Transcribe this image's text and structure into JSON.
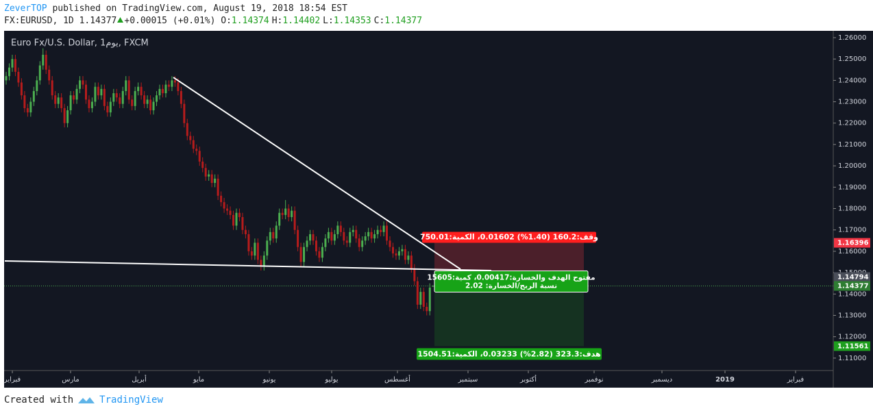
{
  "header": {
    "author": "ZeverTOP",
    "published": "published on TradingView.com, August 19, 2018 18:54 EST",
    "symbol": "FX:EURUSD, 1D 1.14377",
    "change": "+0.00015 (+0.01%)",
    "ohlc": [
      {
        "key": "O:",
        "value": "1.14374"
      },
      {
        "key": "H:",
        "value": "1.14402"
      },
      {
        "key": "L:",
        "value": "1.14353"
      },
      {
        "key": "C:",
        "value": "1.14377"
      }
    ]
  },
  "chart_data": {
    "type": "candlestick",
    "title": "Euro Fx/U.S. Dollar, 1يوم, FXCM",
    "up_color": "#4caf50",
    "down_color": "#b71c1c",
    "ylim": [
      1.1045,
      1.2632
    ],
    "yticks": [
      {
        "value": 1.11,
        "label": "1.11000"
      },
      {
        "value": 1.12,
        "label": "1.12000"
      },
      {
        "value": 1.13,
        "label": "1.13000"
      },
      {
        "value": 1.14,
        "label": "1.14000"
      },
      {
        "value": 1.15,
        "label": "1.15000"
      },
      {
        "value": 1.16,
        "label": "1.16000"
      },
      {
        "value": 1.17,
        "label": "1.17000"
      },
      {
        "value": 1.18,
        "label": "1.18000"
      },
      {
        "value": 1.19,
        "label": "1.19000"
      },
      {
        "value": 1.2,
        "label": "1.20000"
      },
      {
        "value": 1.21,
        "label": "1.21000"
      },
      {
        "value": 1.22,
        "label": "1.22000"
      },
      {
        "value": 1.23,
        "label": "1.23000"
      },
      {
        "value": 1.24,
        "label": "1.24000"
      },
      {
        "value": 1.25,
        "label": "1.25000"
      },
      {
        "value": 1.26,
        "label": "1.26000"
      }
    ],
    "x_labels": [
      "فبراير",
      "مارس",
      "أبريل",
      "مايو",
      "يونيو",
      "يوليو",
      "أغسطس",
      "سبتمبر",
      "أكتوبر",
      "نوفمبر",
      "ديسمبر",
      "2019",
      "فبراير"
    ],
    "ohlc": [
      [
        1.24,
        1.244,
        1.238,
        1.242
      ],
      [
        1.242,
        1.248,
        1.24,
        1.246
      ],
      [
        1.246,
        1.252,
        1.244,
        1.25
      ],
      [
        1.25,
        1.252,
        1.242,
        1.244
      ],
      [
        1.244,
        1.246,
        1.237,
        1.239
      ],
      [
        1.239,
        1.241,
        1.231,
        1.233
      ],
      [
        1.233,
        1.235,
        1.225,
        1.227
      ],
      [
        1.227,
        1.229,
        1.223,
        1.225
      ],
      [
        1.225,
        1.232,
        1.223,
        1.23
      ],
      [
        1.23,
        1.237,
        1.228,
        1.235
      ],
      [
        1.235,
        1.242,
        1.233,
        1.24
      ],
      [
        1.24,
        1.249,
        1.238,
        1.247
      ],
      [
        1.247,
        1.255,
        1.245,
        1.252
      ],
      [
        1.252,
        1.254,
        1.243,
        1.245
      ],
      [
        1.245,
        1.247,
        1.238,
        1.24
      ],
      [
        1.24,
        1.242,
        1.231,
        1.233
      ],
      [
        1.233,
        1.235,
        1.227,
        1.229
      ],
      [
        1.229,
        1.234,
        1.227,
        1.232
      ],
      [
        1.232,
        1.234,
        1.225,
        1.227
      ],
      [
        1.227,
        1.229,
        1.218,
        1.22
      ],
      [
        1.22,
        1.228,
        1.218,
        1.226
      ],
      [
        1.226,
        1.235,
        1.224,
        1.233
      ],
      [
        1.233,
        1.235,
        1.229,
        1.231
      ],
      [
        1.231,
        1.238,
        1.229,
        1.236
      ],
      [
        1.236,
        1.242,
        1.234,
        1.24
      ],
      [
        1.24,
        1.242,
        1.236,
        1.238
      ],
      [
        1.238,
        1.24,
        1.229,
        1.231
      ],
      [
        1.231,
        1.233,
        1.225,
        1.227
      ],
      [
        1.227,
        1.232,
        1.225,
        1.23
      ],
      [
        1.23,
        1.239,
        1.228,
        1.237
      ],
      [
        1.237,
        1.239,
        1.231,
        1.233
      ],
      [
        1.233,
        1.238,
        1.231,
        1.236
      ],
      [
        1.236,
        1.238,
        1.226,
        1.228
      ],
      [
        1.228,
        1.23,
        1.223,
        1.225
      ],
      [
        1.225,
        1.232,
        1.223,
        1.23
      ],
      [
        1.23,
        1.236,
        1.228,
        1.234
      ],
      [
        1.234,
        1.236,
        1.23,
        1.232
      ],
      [
        1.232,
        1.234,
        1.227,
        1.229
      ],
      [
        1.229,
        1.237,
        1.227,
        1.235
      ],
      [
        1.235,
        1.242,
        1.233,
        1.24
      ],
      [
        1.24,
        1.242,
        1.229,
        1.231
      ],
      [
        1.231,
        1.233,
        1.226,
        1.228
      ],
      [
        1.228,
        1.237,
        1.226,
        1.235
      ],
      [
        1.235,
        1.239,
        1.233,
        1.237
      ],
      [
        1.237,
        1.239,
        1.231,
        1.233
      ],
      [
        1.233,
        1.235,
        1.227,
        1.229
      ],
      [
        1.229,
        1.233,
        1.227,
        1.231
      ],
      [
        1.231,
        1.233,
        1.224,
        1.226
      ],
      [
        1.226,
        1.232,
        1.224,
        1.23
      ],
      [
        1.23,
        1.235,
        1.228,
        1.233
      ],
      [
        1.233,
        1.238,
        1.231,
        1.236
      ],
      [
        1.236,
        1.238,
        1.232,
        1.234
      ],
      [
        1.234,
        1.24,
        1.232,
        1.238
      ],
      [
        1.238,
        1.24,
        1.235,
        1.237
      ],
      [
        1.237,
        1.242,
        1.235,
        1.24
      ],
      [
        1.24,
        1.242,
        1.237,
        1.239
      ],
      [
        1.239,
        1.241,
        1.233,
        1.235
      ],
      [
        1.235,
        1.237,
        1.227,
        1.229
      ],
      [
        1.229,
        1.231,
        1.218,
        1.22
      ],
      [
        1.22,
        1.222,
        1.212,
        1.214
      ],
      [
        1.214,
        1.216,
        1.21,
        1.212
      ],
      [
        1.212,
        1.214,
        1.206,
        1.208
      ],
      [
        1.208,
        1.21,
        1.205,
        1.207
      ],
      [
        1.207,
        1.209,
        1.2,
        1.202
      ],
      [
        1.202,
        1.204,
        1.197,
        1.199
      ],
      [
        1.199,
        1.201,
        1.193,
        1.195
      ],
      [
        1.195,
        1.198,
        1.193,
        1.196
      ],
      [
        1.196,
        1.198,
        1.19,
        1.192
      ],
      [
        1.192,
        1.196,
        1.19,
        1.194
      ],
      [
        1.194,
        1.196,
        1.184,
        1.186
      ],
      [
        1.186,
        1.188,
        1.181,
        1.183
      ],
      [
        1.183,
        1.185,
        1.178,
        1.18
      ],
      [
        1.18,
        1.182,
        1.177,
        1.179
      ],
      [
        1.179,
        1.181,
        1.175,
        1.177
      ],
      [
        1.177,
        1.179,
        1.17,
        1.172
      ],
      [
        1.172,
        1.18,
        1.17,
        1.178
      ],
      [
        1.178,
        1.18,
        1.174,
        1.176
      ],
      [
        1.176,
        1.178,
        1.168,
        1.17
      ],
      [
        1.17,
        1.172,
        1.166,
        1.168
      ],
      [
        1.168,
        1.17,
        1.158,
        1.16
      ],
      [
        1.16,
        1.162,
        1.156,
        1.158
      ],
      [
        1.158,
        1.166,
        1.156,
        1.164
      ],
      [
        1.164,
        1.166,
        1.154,
        1.156
      ],
      [
        1.156,
        1.158,
        1.151,
        1.153
      ],
      [
        1.153,
        1.16,
        1.151,
        1.158
      ],
      [
        1.158,
        1.167,
        1.156,
        1.165
      ],
      [
        1.165,
        1.171,
        1.163,
        1.169
      ],
      [
        1.169,
        1.171,
        1.164,
        1.166
      ],
      [
        1.166,
        1.174,
        1.164,
        1.172
      ],
      [
        1.172,
        1.18,
        1.17,
        1.178
      ],
      [
        1.178,
        1.18,
        1.175,
        1.177
      ],
      [
        1.177,
        1.184,
        1.175,
        1.18
      ],
      [
        1.18,
        1.182,
        1.174,
        1.176
      ],
      [
        1.176,
        1.181,
        1.174,
        1.179
      ],
      [
        1.179,
        1.181,
        1.168,
        1.17
      ],
      [
        1.17,
        1.172,
        1.16,
        1.162
      ],
      [
        1.162,
        1.164,
        1.153,
        1.155
      ],
      [
        1.155,
        1.164,
        1.153,
        1.162
      ],
      [
        1.162,
        1.167,
        1.16,
        1.165
      ],
      [
        1.165,
        1.17,
        1.163,
        1.168
      ],
      [
        1.168,
        1.17,
        1.163,
        1.165
      ],
      [
        1.165,
        1.167,
        1.158,
        1.16
      ],
      [
        1.16,
        1.162,
        1.155,
        1.157
      ],
      [
        1.157,
        1.164,
        1.155,
        1.162
      ],
      [
        1.162,
        1.168,
        1.16,
        1.166
      ],
      [
        1.166,
        1.171,
        1.164,
        1.169
      ],
      [
        1.169,
        1.171,
        1.163,
        1.165
      ],
      [
        1.165,
        1.17,
        1.163,
        1.168
      ],
      [
        1.168,
        1.174,
        1.166,
        1.172
      ],
      [
        1.172,
        1.174,
        1.167,
        1.169
      ],
      [
        1.169,
        1.171,
        1.163,
        1.165
      ],
      [
        1.165,
        1.167,
        1.162,
        1.164
      ],
      [
        1.164,
        1.171,
        1.162,
        1.169
      ],
      [
        1.169,
        1.172,
        1.167,
        1.17
      ],
      [
        1.17,
        1.172,
        1.164,
        1.166
      ],
      [
        1.166,
        1.168,
        1.16,
        1.162
      ],
      [
        1.162,
        1.167,
        1.16,
        1.165
      ],
      [
        1.165,
        1.169,
        1.163,
        1.167
      ],
      [
        1.167,
        1.171,
        1.165,
        1.169
      ],
      [
        1.169,
        1.171,
        1.164,
        1.166
      ],
      [
        1.166,
        1.17,
        1.164,
        1.168
      ],
      [
        1.168,
        1.172,
        1.166,
        1.17
      ],
      [
        1.17,
        1.172,
        1.167,
        1.169
      ],
      [
        1.169,
        1.174,
        1.167,
        1.172
      ],
      [
        1.172,
        1.174,
        1.163,
        1.165
      ],
      [
        1.165,
        1.167,
        1.16,
        1.162
      ],
      [
        1.162,
        1.164,
        1.157,
        1.159
      ],
      [
        1.159,
        1.161,
        1.156,
        1.158
      ],
      [
        1.158,
        1.162,
        1.156,
        1.16
      ],
      [
        1.16,
        1.163,
        1.158,
        1.161
      ],
      [
        1.161,
        1.163,
        1.154,
        1.156
      ],
      [
        1.156,
        1.16,
        1.154,
        1.158
      ],
      [
        1.158,
        1.16,
        1.15,
        1.152
      ],
      [
        1.152,
        1.154,
        1.144,
        1.146
      ],
      [
        1.146,
        1.148,
        1.133,
        1.135
      ],
      [
        1.135,
        1.143,
        1.133,
        1.141
      ],
      [
        1.141,
        1.143,
        1.132,
        1.134
      ],
      [
        1.134,
        1.136,
        1.13,
        1.132
      ],
      [
        1.132,
        1.145,
        1.13,
        1.143
      ],
      [
        1.14374,
        1.14402,
        1.14353,
        1.14377
      ]
    ],
    "price_labels": [
      {
        "value": 1.16396,
        "color": "#f23645"
      },
      {
        "value": 1.14794,
        "color": "#4a4e59"
      },
      {
        "value": 1.14377,
        "color": "#2e7d32"
      },
      {
        "value": 1.11561,
        "color": "#1e9e1e"
      }
    ],
    "position": {
      "entry": 1.14794,
      "stop": 1.16396,
      "target": 1.11561,
      "stop_label": "وقف:160.2 (1.40%) 0.01602، الكمية:750.01",
      "entry_label": "مفتوح الهدف والخسارة:0.00417، كمية:15605",
      "ratio_label": "نسبة الربح/الخسارة: 2.02",
      "target_label": "هدف:323.3 (2.82%) 0.03233، الكمية:1504.51"
    }
  },
  "footer": {
    "created": "Created with",
    "brand": "TradingView"
  }
}
